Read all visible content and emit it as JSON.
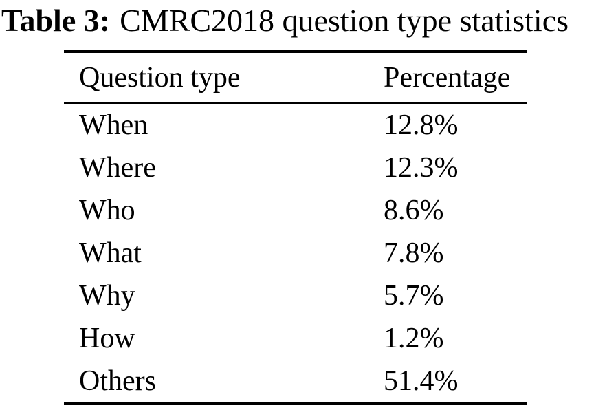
{
  "caption": {
    "label": "Table 3:",
    "text": "CMRC2018 question type statistics"
  },
  "table": {
    "columns": [
      "Question type",
      "Percentage"
    ],
    "rows": [
      {
        "type": "When",
        "percentage": "12.8%"
      },
      {
        "type": "Where",
        "percentage": "12.3%"
      },
      {
        "type": "Who",
        "percentage": "8.6%"
      },
      {
        "type": "What",
        "percentage": "7.8%"
      },
      {
        "type": "Why",
        "percentage": "5.7%"
      },
      {
        "type": "How",
        "percentage": "1.2%"
      },
      {
        "type": "Others",
        "percentage": "51.4%"
      }
    ]
  },
  "chart_data": {
    "type": "table",
    "title": "CMRC2018 question type statistics",
    "categories": [
      "When",
      "Where",
      "Who",
      "What",
      "Why",
      "How",
      "Others"
    ],
    "values": [
      12.8,
      12.3,
      8.6,
      7.8,
      5.7,
      1.2,
      51.4
    ],
    "value_unit": "%"
  },
  "colors": {
    "text": "#000000",
    "background": "#ffffff",
    "rule": "#000000"
  }
}
